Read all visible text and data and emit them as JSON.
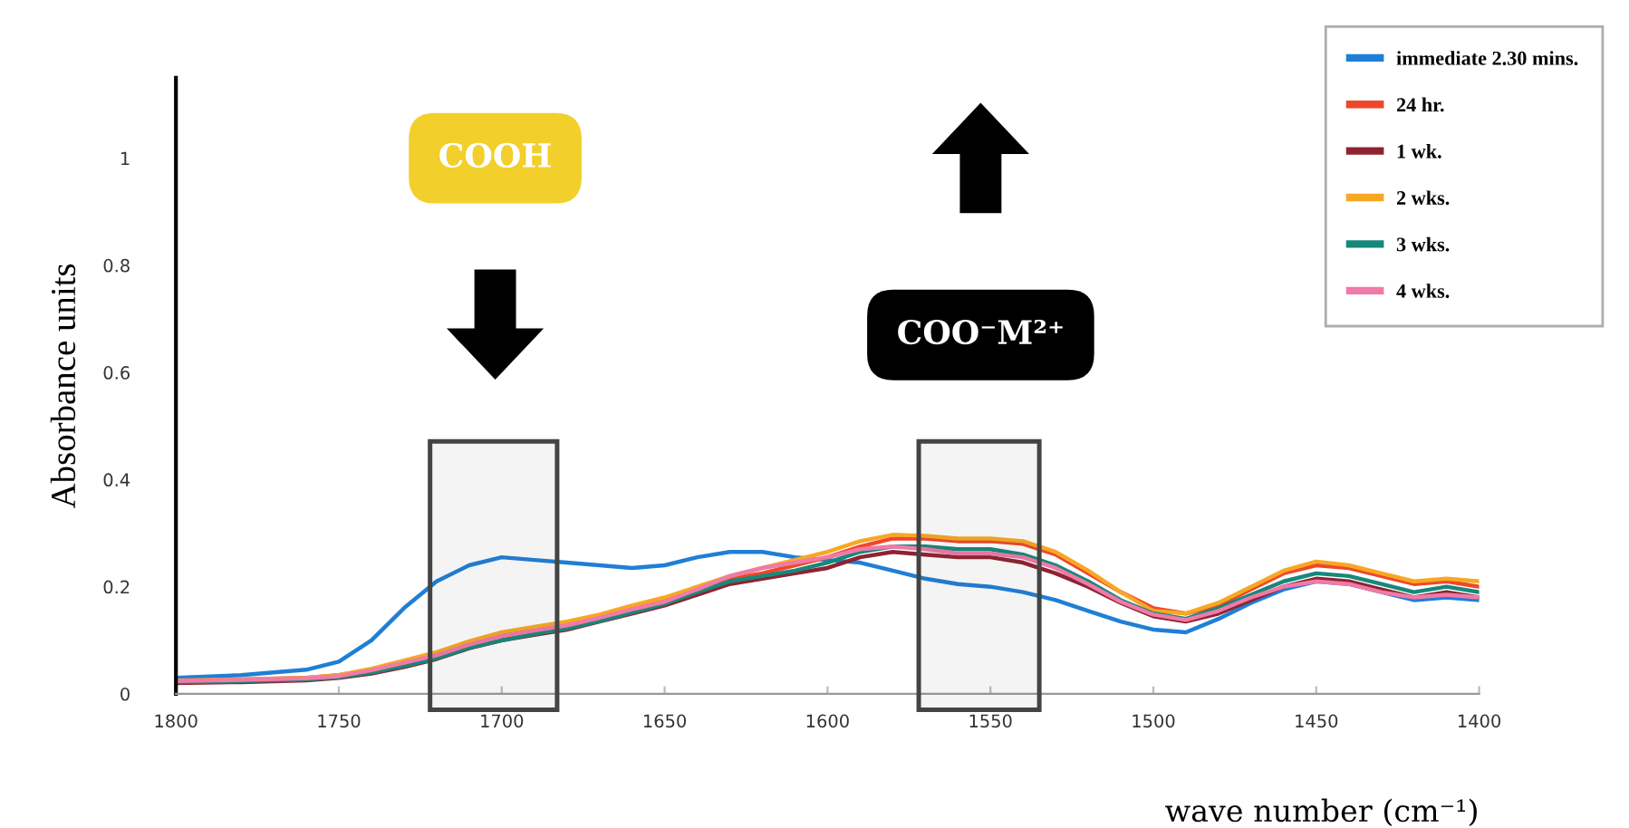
{
  "chart_data": {
    "type": "line",
    "xlabel": "wave number (cm⁻¹)",
    "ylabel": "Absorbance units",
    "x": [
      1800,
      1780,
      1760,
      1750,
      1740,
      1730,
      1720,
      1710,
      1700,
      1690,
      1680,
      1670,
      1660,
      1650,
      1640,
      1630,
      1620,
      1610,
      1600,
      1590,
      1580,
      1570,
      1560,
      1550,
      1540,
      1530,
      1520,
      1510,
      1500,
      1490,
      1480,
      1470,
      1460,
      1450,
      1440,
      1430,
      1420,
      1410,
      1400
    ],
    "xlim": [
      1800,
      1400
    ],
    "xticks": [
      1800,
      1750,
      1700,
      1650,
      1600,
      1550,
      1500,
      1450,
      1400
    ],
    "ylim": [
      0,
      1.15
    ],
    "yticks": [
      0,
      0.2,
      0.4,
      0.6,
      0.8,
      1
    ],
    "series": [
      {
        "name": "immediate 2.30 mins.",
        "color": "#1f7fd6",
        "values": [
          0.03,
          0.035,
          0.045,
          0.06,
          0.1,
          0.16,
          0.21,
          0.24,
          0.255,
          0.25,
          0.245,
          0.24,
          0.235,
          0.24,
          0.255,
          0.265,
          0.265,
          0.255,
          0.25,
          0.245,
          0.23,
          0.215,
          0.205,
          0.2,
          0.19,
          0.175,
          0.155,
          0.135,
          0.12,
          0.115,
          0.14,
          0.17,
          0.195,
          0.21,
          0.205,
          0.19,
          0.175,
          0.18,
          0.175
        ]
      },
      {
        "name": "24 hr.",
        "color": "#f0472a",
        "values": [
          0.025,
          0.027,
          0.03,
          0.035,
          0.045,
          0.06,
          0.075,
          0.095,
          0.11,
          0.12,
          0.13,
          0.145,
          0.16,
          0.175,
          0.195,
          0.215,
          0.225,
          0.24,
          0.255,
          0.275,
          0.29,
          0.29,
          0.285,
          0.285,
          0.28,
          0.26,
          0.225,
          0.19,
          0.16,
          0.15,
          0.165,
          0.195,
          0.225,
          0.24,
          0.235,
          0.22,
          0.205,
          0.21,
          0.2
        ]
      },
      {
        "name": "1 wk.",
        "color": "#8f2330",
        "values": [
          0.02,
          0.022,
          0.025,
          0.03,
          0.038,
          0.05,
          0.065,
          0.085,
          0.1,
          0.11,
          0.12,
          0.135,
          0.15,
          0.165,
          0.185,
          0.205,
          0.215,
          0.225,
          0.235,
          0.255,
          0.265,
          0.26,
          0.255,
          0.255,
          0.245,
          0.225,
          0.2,
          0.17,
          0.145,
          0.135,
          0.15,
          0.175,
          0.2,
          0.215,
          0.21,
          0.195,
          0.18,
          0.19,
          0.18
        ]
      },
      {
        "name": "2 wks.",
        "color": "#f7a823",
        "values": [
          0.025,
          0.027,
          0.03,
          0.035,
          0.047,
          0.062,
          0.078,
          0.098,
          0.115,
          0.125,
          0.135,
          0.148,
          0.165,
          0.18,
          0.2,
          0.22,
          0.235,
          0.25,
          0.265,
          0.285,
          0.297,
          0.295,
          0.29,
          0.29,
          0.285,
          0.265,
          0.23,
          0.19,
          0.155,
          0.15,
          0.17,
          0.2,
          0.23,
          0.247,
          0.24,
          0.225,
          0.21,
          0.215,
          0.21
        ]
      },
      {
        "name": "3 wks.",
        "color": "#16887a",
        "values": [
          0.022,
          0.024,
          0.027,
          0.031,
          0.04,
          0.052,
          0.066,
          0.086,
          0.1,
          0.112,
          0.122,
          0.136,
          0.152,
          0.168,
          0.19,
          0.21,
          0.22,
          0.23,
          0.245,
          0.265,
          0.275,
          0.275,
          0.27,
          0.27,
          0.26,
          0.24,
          0.21,
          0.175,
          0.15,
          0.14,
          0.16,
          0.185,
          0.21,
          0.225,
          0.22,
          0.205,
          0.19,
          0.2,
          0.19
        ]
      },
      {
        "name": "4 wks.",
        "color": "#f07aa8",
        "values": [
          0.024,
          0.026,
          0.029,
          0.033,
          0.044,
          0.058,
          0.072,
          0.092,
          0.108,
          0.118,
          0.128,
          0.142,
          0.158,
          0.172,
          0.195,
          0.22,
          0.235,
          0.245,
          0.255,
          0.27,
          0.275,
          0.27,
          0.262,
          0.262,
          0.255,
          0.235,
          0.205,
          0.172,
          0.148,
          0.138,
          0.155,
          0.18,
          0.2,
          0.21,
          0.205,
          0.19,
          0.18,
          0.185,
          0.18
        ]
      }
    ],
    "bands": [
      {
        "axis": "x",
        "from": 1722,
        "to": 1683,
        "color": "#444444"
      },
      {
        "axis": "x",
        "from": 1572,
        "to": 1535,
        "color": "#444444"
      }
    ],
    "annotations": [
      "COOH",
      "COO⁻M²⁺"
    ],
    "legend": "top right",
    "grid": false,
    "marker": "none",
    "line_style": "solid"
  }
}
